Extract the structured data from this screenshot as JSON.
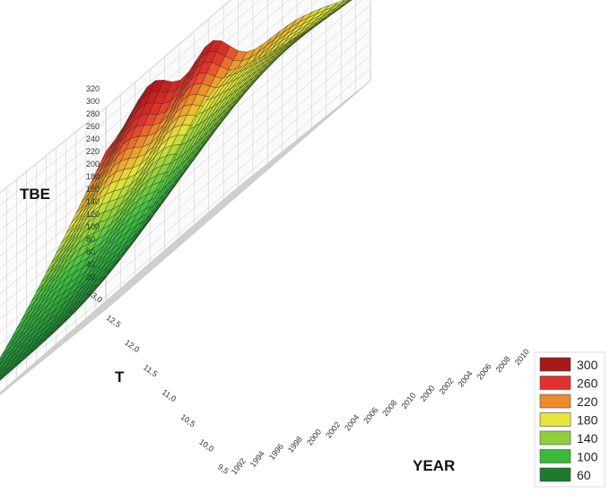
{
  "chart_data": {
    "type": "surface3d",
    "zlabel": "TBE",
    "ylabel": "T",
    "xlabel": "YEAR",
    "z_ticks": [
      "320",
      "300",
      "280",
      "260",
      "240",
      "220",
      "200",
      "180",
      "160",
      "140",
      "120",
      "100",
      "80",
      "60",
      "40",
      "20"
    ],
    "t_ticks": [
      "13,0",
      "12,5",
      "12,0",
      "11,5",
      "11,0",
      "10,5",
      "10,0",
      "9,5"
    ],
    "year_ticks": [
      "1992",
      "1994",
      "1996",
      "1998",
      "2000",
      "2002",
      "2004",
      "2006",
      "2008",
      "2010",
      "2000",
      "2002",
      "2004",
      "2006",
      "2008",
      "2010"
    ],
    "legend": [
      {
        "label": "300",
        "color": "#a41a1a"
      },
      {
        "label": "260",
        "color": "#e43030"
      },
      {
        "label": "220",
        "color": "#ee8a2c"
      },
      {
        "label": "180",
        "color": "#e6e63a"
      },
      {
        "label": "140",
        "color": "#8fcf3c"
      },
      {
        "label": "100",
        "color": "#3cb83c"
      },
      {
        "label": "60",
        "color": "#1d7a2e"
      }
    ],
    "grid": true,
    "legend_position": "bottom-right"
  }
}
